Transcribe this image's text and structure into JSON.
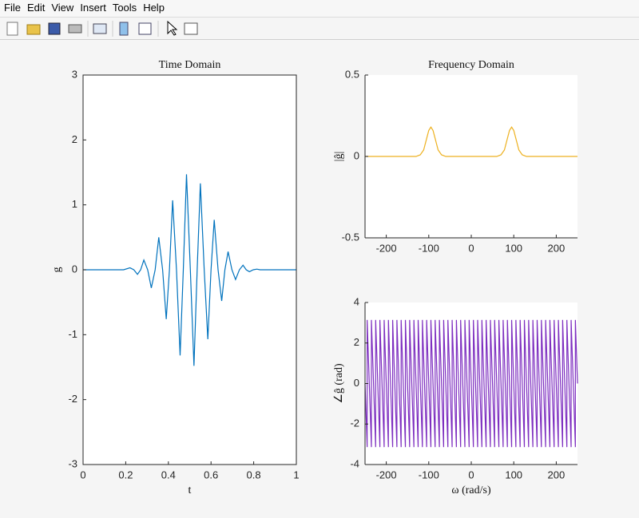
{
  "menu": [
    "File",
    "Edit",
    "View",
    "Insert",
    "Tools",
    "Help"
  ],
  "chart_data": [
    {
      "type": "line",
      "title": "Time Domain",
      "xlabel": "t",
      "ylabel": "g",
      "color": "#0072bd",
      "box": true,
      "xlim": [
        0,
        1
      ],
      "ylim": [
        -3,
        3
      ],
      "xticks": [
        0,
        0.2,
        0.4,
        0.6,
        0.8,
        1
      ],
      "yticks": [
        -3,
        -2,
        -1,
        0,
        1,
        2,
        3
      ],
      "x": [
        0,
        0.19,
        0.22,
        0.238,
        0.255,
        0.27,
        0.285,
        0.303,
        0.32,
        0.338,
        0.355,
        0.373,
        0.39,
        0.405,
        0.42,
        0.438,
        0.455,
        0.47,
        0.485,
        0.503,
        0.52,
        0.535,
        0.55,
        0.568,
        0.585,
        0.6,
        0.615,
        0.633,
        0.65,
        0.665,
        0.68,
        0.698,
        0.715,
        0.733,
        0.75,
        0.765,
        0.78,
        0.798,
        0.815,
        0.83,
        1
      ],
      "values": [
        0,
        0,
        0.03,
        0,
        -0.07,
        0,
        0.15,
        0,
        -0.28,
        0,
        0.5,
        0,
        -0.76,
        0,
        1.07,
        0,
        -1.32,
        0,
        1.47,
        0,
        -1.48,
        0,
        1.33,
        0,
        -1.07,
        0,
        0.77,
        0,
        -0.48,
        0,
        0.28,
        0,
        -0.15,
        0,
        0.07,
        0,
        -0.03,
        0,
        0.01,
        0,
        0
      ]
    },
    {
      "type": "line",
      "title": "Frequency Domain",
      "ylabel": "|ĝ|",
      "color": "#edb120",
      "box": false,
      "xlim": [
        -250,
        250
      ],
      "ylim": [
        -0.5,
        0.5
      ],
      "xticks": [
        -200,
        -100,
        0,
        100,
        200
      ],
      "yticks": [
        -0.5,
        0,
        0.5
      ],
      "x": [
        -250,
        -130,
        -120,
        -112,
        -105,
        -100,
        -95,
        -90,
        -85,
        -78,
        -70,
        -60,
        60,
        70,
        78,
        85,
        90,
        95,
        100,
        105,
        112,
        120,
        130,
        250
      ],
      "values": [
        0,
        0,
        0.01,
        0.04,
        0.11,
        0.16,
        0.18,
        0.16,
        0.11,
        0.04,
        0.01,
        0,
        0,
        0.01,
        0.04,
        0.11,
        0.16,
        0.18,
        0.16,
        0.11,
        0.04,
        0.01,
        0,
        0
      ]
    },
    {
      "type": "line",
      "xlabel": "ω (rad/s)",
      "ylabel": "∠ĝ (rad)",
      "color": "#7e2fc0",
      "box": false,
      "xlim": [
        -250,
        250
      ],
      "ylim": [
        -4,
        4
      ],
      "xticks": [
        -200,
        -100,
        0,
        100,
        200
      ],
      "yticks": [
        -4,
        -2,
        0,
        2,
        4
      ],
      "x": [
        -250,
        -245,
        -245,
        -235,
        -235,
        -225,
        -225,
        -215,
        -215,
        -205,
        -205,
        -195,
        -195,
        -185,
        -185,
        -175,
        -175,
        -165,
        -165,
        -155,
        -155,
        -145,
        -145,
        -135,
        -135,
        -125,
        -125,
        -115,
        -115,
        -105,
        -105,
        -95,
        -95,
        -85,
        -85,
        -75,
        -75,
        -65,
        -65,
        -55,
        -55,
        -45,
        -45,
        -35,
        -35,
        -25,
        -25,
        -15,
        -15,
        -5,
        -5,
        5,
        5,
        15,
        15,
        25,
        25,
        35,
        35,
        45,
        45,
        55,
        55,
        65,
        65,
        75,
        75,
        85,
        85,
        95,
        95,
        105,
        105,
        115,
        115,
        125,
        125,
        135,
        135,
        145,
        145,
        155,
        155,
        165,
        165,
        175,
        175,
        185,
        185,
        195,
        195,
        205,
        205,
        215,
        215,
        225,
        225,
        235,
        235,
        245,
        245,
        250
      ],
      "values": [
        0,
        -3.14,
        3.14,
        -3.14,
        3.14,
        -3.14,
        3.14,
        -3.14,
        3.14,
        -3.14,
        3.14,
        -3.14,
        3.14,
        -3.14,
        3.14,
        -3.14,
        3.14,
        -3.14,
        3.14,
        -3.14,
        3.14,
        -3.14,
        3.14,
        -3.14,
        3.14,
        -3.14,
        3.14,
        -3.14,
        3.14,
        -3.14,
        3.14,
        -3.14,
        3.14,
        -3.14,
        3.14,
        -3.14,
        3.14,
        -3.14,
        3.14,
        -3.14,
        3.14,
        -3.14,
        3.14,
        -3.14,
        3.14,
        -3.14,
        3.14,
        -3.14,
        3.14,
        -3.14,
        3.14,
        -3.14,
        3.14,
        -3.14,
        3.14,
        -3.14,
        3.14,
        -3.14,
        3.14,
        -3.14,
        3.14,
        -3.14,
        3.14,
        -3.14,
        3.14,
        -3.14,
        3.14,
        -3.14,
        3.14,
        -3.14,
        3.14,
        -3.14,
        3.14,
        -3.14,
        3.14,
        -3.14,
        3.14,
        -3.14,
        3.14,
        -3.14,
        3.14,
        -3.14,
        3.14,
        -3.14,
        3.14,
        -3.14,
        3.14,
        -3.14,
        3.14,
        -3.14,
        3.14,
        -3.14,
        3.14,
        -3.14,
        3.14,
        -3.14,
        3.14,
        -3.14,
        3.14,
        -3.14,
        3.14,
        0
      ]
    }
  ]
}
